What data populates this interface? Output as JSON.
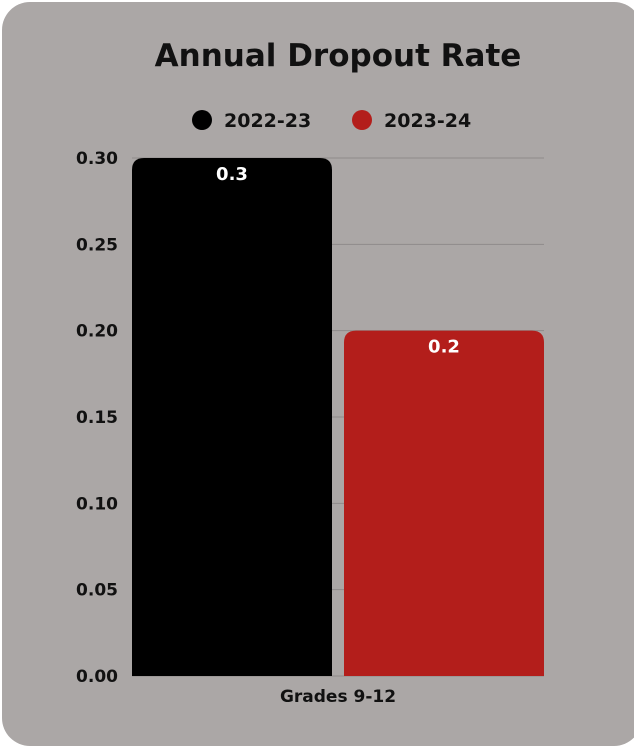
{
  "chart_data": {
    "type": "bar",
    "title": "Annual Dropout Rate",
    "categories": [
      "Grades 9-12"
    ],
    "series": [
      {
        "name": "2022-23",
        "values": [
          0.3
        ],
        "label": "0.3",
        "color": "#000000"
      },
      {
        "name": "2023-24",
        "values": [
          0.2
        ],
        "label": "0.2",
        "color": "#b31e1b"
      }
    ],
    "ylim": [
      0,
      0.3
    ],
    "yticks": [
      {
        "value": 0.3,
        "label": "0.30"
      },
      {
        "value": 0.25,
        "label": "0.25"
      },
      {
        "value": 0.2,
        "label": "0.20"
      },
      {
        "value": 0.15,
        "label": "0.15"
      },
      {
        "value": 0.1,
        "label": "0.10"
      },
      {
        "value": 0.05,
        "label": "0.05"
      },
      {
        "value": 0.0,
        "label": "0.00"
      }
    ],
    "grid": true,
    "legend_position": "top",
    "background_color": "#aba7a6",
    "gridline_color": "#8f8b8a"
  }
}
